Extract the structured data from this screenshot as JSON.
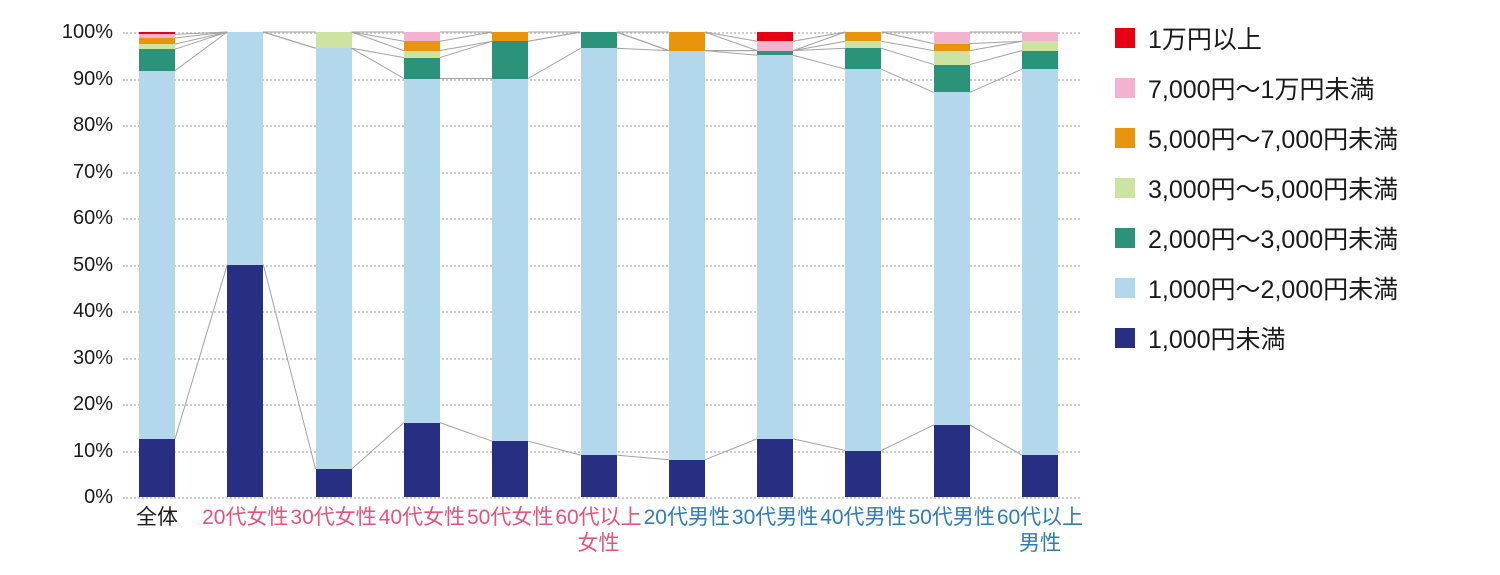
{
  "chart_data": {
    "type": "bar",
    "stacked": true,
    "percent_stacked": true,
    "title": "",
    "xlabel": "",
    "ylabel": "",
    "y_axis": {
      "min": 0,
      "max": 100,
      "step": 10,
      "suffix": "%"
    },
    "grid": "dotted horizontal",
    "legend_position": "right",
    "connector_lines": true,
    "connector_line_color": "#a3a3a3",
    "categories": [
      {
        "label": "全体",
        "color": "#1a1a1a"
      },
      {
        "label": "20代女性",
        "color": "#e8537c"
      },
      {
        "label": "30代女性",
        "color": "#e8537c"
      },
      {
        "label": "40代女性",
        "color": "#e8537c"
      },
      {
        "label": "50代女性",
        "color": "#e8537c"
      },
      {
        "label": "60代以上\n女性",
        "color": "#e8537c"
      },
      {
        "label": "20代男性",
        "color": "#2e7cba"
      },
      {
        "label": "30代男性",
        "color": "#2e7cba"
      },
      {
        "label": "40代男性",
        "color": "#2e7cba"
      },
      {
        "label": "50代男性",
        "color": "#2e7cba"
      },
      {
        "label": "60代以上\n男性",
        "color": "#2e7cba"
      }
    ],
    "series": [
      {
        "name": "1,000円未満",
        "color": "#262f82",
        "values": [
          12.5,
          50,
          6,
          16,
          12,
          9,
          8,
          12.5,
          10,
          15.5,
          9
        ]
      },
      {
        "name": "1,000円〜2,000円未満",
        "color": "#b3d8ec",
        "values": [
          79.2,
          50,
          90.5,
          74,
          78,
          87.5,
          88,
          82.5,
          82,
          71.5,
          83
        ]
      },
      {
        "name": "2,000円〜3,000円未満",
        "color": "#2a9379",
        "values": [
          4.6,
          0,
          0,
          4.5,
          8,
          3.5,
          0,
          1,
          4.5,
          6,
          4
        ]
      },
      {
        "name": "3,000円〜5,000円未満",
        "color": "#cde3a1",
        "values": [
          1.1,
          0,
          3.5,
          1.5,
          0,
          0,
          0,
          0,
          1.5,
          3,
          2
        ]
      },
      {
        "name": "5,000円〜7,000円未満",
        "color": "#e8940c",
        "values": [
          1.3,
          0,
          0,
          2,
          2,
          0,
          4,
          0,
          2,
          1.5,
          0
        ]
      },
      {
        "name": "7,000円〜1万円未満",
        "color": "#f3b2ce",
        "values": [
          0.8,
          0,
          0,
          2,
          0,
          0,
          0,
          2,
          0,
          2.5,
          2
        ]
      },
      {
        "name": "1万円以上",
        "color": "#e60012",
        "values": [
          0.5,
          0,
          0,
          0,
          0,
          0,
          0,
          2,
          0,
          0,
          0
        ]
      }
    ]
  }
}
